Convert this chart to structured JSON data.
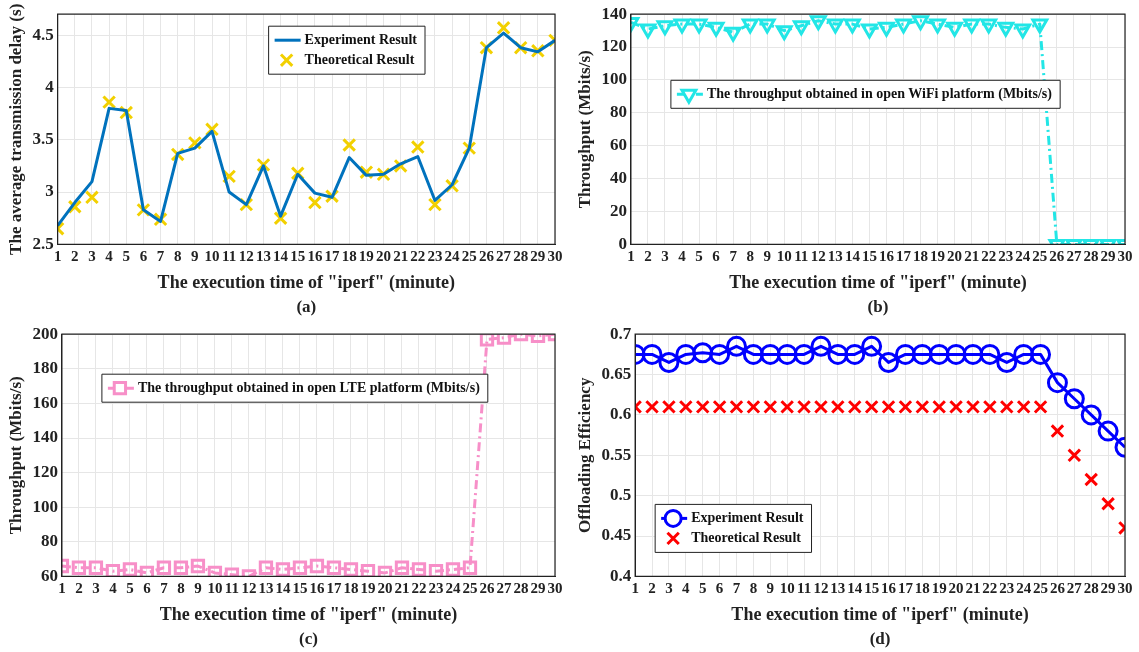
{
  "chart_data": [
    {
      "type": "line",
      "xlabel": "The execution time of \"iperf\" (minute)",
      "ylabel": "The average transmission delay (s)",
      "annotations": [
        "(a)"
      ],
      "x": [
        1,
        2,
        3,
        4,
        5,
        6,
        7,
        8,
        9,
        10,
        11,
        12,
        13,
        14,
        15,
        16,
        17,
        18,
        19,
        20,
        21,
        22,
        23,
        24,
        25,
        26,
        27,
        28,
        29,
        30
      ],
      "xlim": [
        1,
        30
      ],
      "xticks": [
        1,
        2,
        3,
        4,
        5,
        6,
        7,
        8,
        9,
        10,
        11,
        12,
        13,
        14,
        15,
        16,
        17,
        18,
        19,
        20,
        21,
        22,
        23,
        24,
        25,
        26,
        27,
        28,
        29,
        30
      ],
      "ylim": [
        2.5,
        4.7
      ],
      "yticks": [
        2.5,
        3,
        3.5,
        4,
        4.5
      ],
      "grid": true,
      "legend": "top right",
      "series": [
        {
          "name": "Experiment Result",
          "type": "line",
          "color": "#0072bd",
          "marker": "none",
          "line_style": "solid",
          "values": [
            2.68,
            2.9,
            3.1,
            3.8,
            3.78,
            2.83,
            2.72,
            3.37,
            3.42,
            3.58,
            3.0,
            2.88,
            3.25,
            2.77,
            3.17,
            2.99,
            2.95,
            3.33,
            3.16,
            3.17,
            3.27,
            3.34,
            2.92,
            3.07,
            3.42,
            4.38,
            4.52,
            4.38,
            4.34,
            4.45
          ]
        },
        {
          "name": "Theoretical Result",
          "type": "scatter",
          "color": "#f2d000",
          "marker": "cross",
          "values": [
            2.65,
            2.86,
            2.95,
            3.86,
            3.76,
            2.83,
            2.74,
            3.36,
            3.47,
            3.6,
            3.15,
            2.88,
            3.26,
            2.75,
            3.18,
            2.9,
            2.96,
            3.45,
            3.19,
            3.17,
            3.25,
            3.43,
            2.88,
            3.06,
            3.42,
            4.38,
            4.57,
            4.38,
            4.35,
            4.45
          ]
        }
      ]
    },
    {
      "type": "line",
      "xlabel": "The execution time of \"iperf\" (minute)",
      "ylabel": "Throughput (Mbits/s)",
      "annotations": [
        "(b)"
      ],
      "x": [
        1,
        2,
        3,
        4,
        5,
        6,
        7,
        8,
        9,
        10,
        11,
        12,
        13,
        14,
        15,
        16,
        17,
        18,
        19,
        20,
        21,
        22,
        23,
        24,
        25,
        26,
        27,
        28,
        29,
        30
      ],
      "xlim": [
        1,
        30
      ],
      "xticks": [
        1,
        2,
        3,
        4,
        5,
        6,
        7,
        8,
        9,
        10,
        11,
        12,
        13,
        14,
        15,
        16,
        17,
        18,
        19,
        20,
        21,
        22,
        23,
        24,
        25,
        26,
        27,
        28,
        29,
        30
      ],
      "ylim": [
        0,
        140
      ],
      "yticks": [
        0,
        20,
        40,
        60,
        80,
        100,
        120,
        140
      ],
      "grid": true,
      "legend": "left",
      "series": [
        {
          "name": "The throughput obtained in open WiFi platform (Mbits/s)",
          "type": "line",
          "color": "#22e6e6",
          "marker": "triangle",
          "line_style": "dashed",
          "values": [
            135,
            131,
            133,
            134,
            134,
            132,
            129,
            134,
            134,
            130,
            133,
            136,
            134,
            134,
            131,
            132,
            134,
            136,
            134,
            132,
            134,
            134,
            132,
            131,
            134,
            0,
            0,
            0,
            0,
            0
          ]
        }
      ]
    },
    {
      "type": "line",
      "xlabel": "The execution time of \"iperf\" (minute)",
      "ylabel": "Throughput (Mbits/s)",
      "annotations": [
        "(c)"
      ],
      "x": [
        1,
        2,
        3,
        4,
        5,
        6,
        7,
        8,
        9,
        10,
        11,
        12,
        13,
        14,
        15,
        16,
        17,
        18,
        19,
        20,
        21,
        22,
        23,
        24,
        25,
        26,
        27,
        28,
        29,
        30
      ],
      "xlim": [
        1,
        30
      ],
      "xticks": [
        1,
        2,
        3,
        4,
        5,
        6,
        7,
        8,
        9,
        10,
        11,
        12,
        13,
        14,
        15,
        16,
        17,
        18,
        19,
        20,
        21,
        22,
        23,
        24,
        25,
        26,
        27,
        28,
        29,
        30
      ],
      "ylim": [
        60,
        200
      ],
      "yticks": [
        60,
        80,
        100,
        120,
        140,
        160,
        180,
        200
      ],
      "grid": true,
      "legend": "top left",
      "series": [
        {
          "name": "The throughput obtained in open LTE platform (Mbits/s)",
          "type": "line",
          "color": "#f78fc8",
          "marker": "square",
          "line_style": "dashed",
          "values": [
            66,
            65,
            65,
            63,
            64,
            62,
            65,
            65,
            66,
            62,
            61,
            60,
            65,
            64,
            65,
            66,
            65,
            64,
            63,
            62,
            65,
            64,
            63,
            64,
            65,
            197,
            198,
            200,
            199,
            200
          ]
        }
      ]
    },
    {
      "type": "line",
      "xlabel": "The execution time of \"iperf\" (minute)",
      "ylabel": "Offloading Efficiency",
      "annotations": [
        "(d)"
      ],
      "x": [
        1,
        2,
        3,
        4,
        5,
        6,
        7,
        8,
        9,
        10,
        11,
        12,
        13,
        14,
        15,
        16,
        17,
        18,
        19,
        20,
        21,
        22,
        23,
        24,
        25,
        26,
        27,
        28,
        29,
        30
      ],
      "xlim": [
        1,
        30
      ],
      "xticks": [
        1,
        2,
        3,
        4,
        5,
        6,
        7,
        8,
        9,
        10,
        11,
        12,
        13,
        14,
        15,
        16,
        17,
        18,
        19,
        20,
        21,
        22,
        23,
        24,
        25,
        26,
        27,
        28,
        29,
        30
      ],
      "ylim": [
        0.4,
        0.7
      ],
      "yticks": [
        0.4,
        0.45,
        0.5,
        0.55,
        0.6,
        0.65,
        0.7
      ],
      "grid": true,
      "legend": "bottom left",
      "series": [
        {
          "name": "Experiment Result",
          "type": "line",
          "color": "#0000ff",
          "marker": "circle",
          "line_style": "solid",
          "values": [
            0.675,
            0.675,
            0.665,
            0.675,
            0.677,
            0.675,
            0.685,
            0.675,
            0.675,
            0.675,
            0.675,
            0.685,
            0.675,
            0.675,
            0.685,
            0.665,
            0.675,
            0.675,
            0.675,
            0.675,
            0.675,
            0.675,
            0.665,
            0.675,
            0.675,
            0.64,
            0.62,
            0.6,
            0.58,
            0.56
          ]
        },
        {
          "name": "Theoretical Result",
          "type": "scatter",
          "color": "#ff0000",
          "marker": "cross",
          "values": [
            0.61,
            0.61,
            0.61,
            0.61,
            0.61,
            0.61,
            0.61,
            0.61,
            0.61,
            0.61,
            0.61,
            0.61,
            0.61,
            0.61,
            0.61,
            0.61,
            0.61,
            0.61,
            0.61,
            0.61,
            0.61,
            0.61,
            0.61,
            0.61,
            0.61,
            0.58,
            0.55,
            0.52,
            0.49,
            0.46
          ]
        }
      ]
    }
  ]
}
